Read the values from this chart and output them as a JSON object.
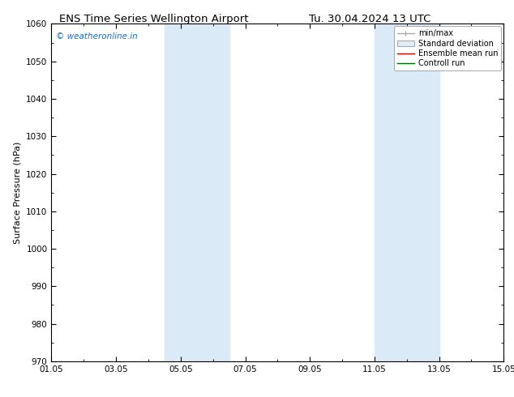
{
  "title_left": "ENS Time Series Wellington Airport",
  "title_right": "Tu. 30.04.2024 13 UTC",
  "ylabel": "Surface Pressure (hPa)",
  "ylim": [
    970,
    1060
  ],
  "yticks": [
    970,
    980,
    990,
    1000,
    1010,
    1020,
    1030,
    1040,
    1050,
    1060
  ],
  "xlim": [
    0,
    14
  ],
  "xtick_positions": [
    0,
    2,
    4,
    6,
    8,
    10,
    12,
    14
  ],
  "xtick_labels": [
    "01.05",
    "03.05",
    "05.05",
    "07.05",
    "09.05",
    "11.05",
    "13.05",
    "15.05"
  ],
  "shaded_bands": [
    {
      "xmin": 3.5,
      "xmax": 5.5
    },
    {
      "xmin": 10.0,
      "xmax": 12.0
    }
  ],
  "shade_color": "#daeaf7",
  "watermark": "© weatheronline.in",
  "watermark_color": "#1a6fc4",
  "legend_entries": [
    "min/max",
    "Standard deviation",
    "Ensemble mean run",
    "Controll run"
  ],
  "legend_line_colors": [
    "#aaaaaa",
    "#cccccc",
    "#cc0000",
    "#006600"
  ],
  "background_color": "#ffffff",
  "title_fontsize": 9.5,
  "axis_label_fontsize": 8,
  "tick_fontsize": 7.5,
  "legend_fontsize": 7
}
